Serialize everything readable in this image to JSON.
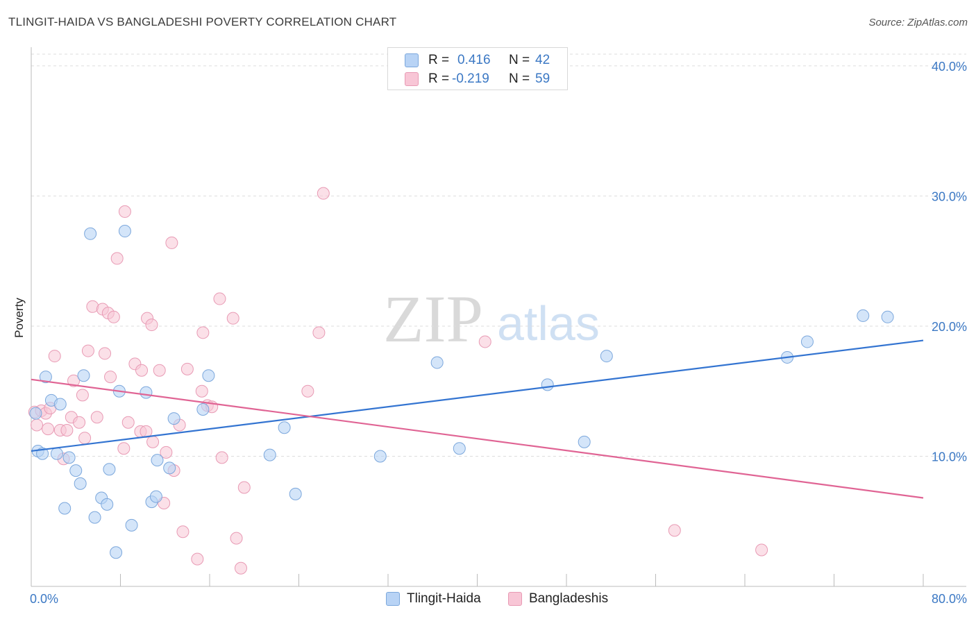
{
  "title": "TLINGIT-HAIDA VS BANGLADESHI POVERTY CORRELATION CHART",
  "source": "Source: ZipAtlas.com",
  "watermark": {
    "zip": "ZIP",
    "atlas": "atlas"
  },
  "legend": {
    "rows": [
      {
        "r_label": "R =",
        "r_value": "0.416",
        "n_label": "N =",
        "n_value": "42"
      },
      {
        "r_label": "R =",
        "r_value": "-0.219",
        "n_label": "N =",
        "n_value": "59"
      }
    ]
  },
  "bottom_legend": [
    "Tlingit-Haida",
    "Bangladeshis"
  ],
  "colors": {
    "blue_fill": "#b8d3f5",
    "blue_stroke": "#7ba7dc",
    "blue_line": "#3374d1",
    "pink_fill": "#f8c6d6",
    "pink_stroke": "#e89ab4",
    "pink_line": "#e06494",
    "tick_text": "#3b78c4"
  },
  "chart_data": {
    "type": "scatter",
    "title": "TLINGIT-HAIDA VS BANGLADESHI POVERTY CORRELATION CHART",
    "xlabel": "",
    "ylabel": "Poverty",
    "xlim": [
      0,
      80
    ],
    "ylim": [
      0,
      40
    ],
    "x_tick_labels": [
      "0.0%",
      "80.0%"
    ],
    "y_ticks": [
      10,
      20,
      30,
      40
    ],
    "y_tick_labels": [
      "10.0%",
      "20.0%",
      "30.0%",
      "40.0%"
    ],
    "grid": true,
    "series": [
      {
        "name": "Tlingit-Haida",
        "r": 0.416,
        "n": 42,
        "trend": [
          [
            0,
            10.4
          ],
          [
            80,
            18.9
          ]
        ],
        "points": [
          [
            0.6,
            10.4
          ],
          [
            1.0,
            10.2
          ],
          [
            1.3,
            16.1
          ],
          [
            1.8,
            14.3
          ],
          [
            2.3,
            10.2
          ],
          [
            2.6,
            14.0
          ],
          [
            3.0,
            6.0
          ],
          [
            3.4,
            9.9
          ],
          [
            4.0,
            8.9
          ],
          [
            4.4,
            7.9
          ],
          [
            4.7,
            16.2
          ],
          [
            5.3,
            27.1
          ],
          [
            5.7,
            5.3
          ],
          [
            6.3,
            6.8
          ],
          [
            6.8,
            6.3
          ],
          [
            7.0,
            9.0
          ],
          [
            7.6,
            2.6
          ],
          [
            7.9,
            15.0
          ],
          [
            8.4,
            27.3
          ],
          [
            9.0,
            4.7
          ],
          [
            10.3,
            14.9
          ],
          [
            10.8,
            6.5
          ],
          [
            11.2,
            6.9
          ],
          [
            11.3,
            9.7
          ],
          [
            12.4,
            9.1
          ],
          [
            12.8,
            12.9
          ],
          [
            15.4,
            13.6
          ],
          [
            15.9,
            16.2
          ],
          [
            21.4,
            10.1
          ],
          [
            22.7,
            12.2
          ],
          [
            23.7,
            7.1
          ],
          [
            31.3,
            10.0
          ],
          [
            36.4,
            17.2
          ],
          [
            38.4,
            10.6
          ],
          [
            46.3,
            15.5
          ],
          [
            49.6,
            11.1
          ],
          [
            51.6,
            17.7
          ],
          [
            67.8,
            17.6
          ],
          [
            69.6,
            18.8
          ],
          [
            74.6,
            20.8
          ],
          [
            76.8,
            20.7
          ],
          [
            0.4,
            13.3
          ]
        ]
      },
      {
        "name": "Bangladeshis",
        "r": -0.219,
        "n": 59,
        "trend": [
          [
            0,
            15.9
          ],
          [
            80,
            6.8
          ]
        ],
        "points": [
          [
            0.3,
            13.4
          ],
          [
            0.5,
            12.4
          ],
          [
            0.9,
            13.5
          ],
          [
            1.3,
            13.3
          ],
          [
            1.5,
            12.1
          ],
          [
            1.7,
            13.7
          ],
          [
            2.1,
            17.7
          ],
          [
            2.6,
            12.0
          ],
          [
            2.9,
            9.8
          ],
          [
            3.2,
            12.0
          ],
          [
            3.6,
            13.0
          ],
          [
            3.8,
            15.8
          ],
          [
            4.3,
            12.6
          ],
          [
            4.6,
            14.7
          ],
          [
            4.8,
            11.4
          ],
          [
            5.1,
            18.1
          ],
          [
            5.5,
            21.5
          ],
          [
            5.9,
            13.0
          ],
          [
            6.4,
            21.3
          ],
          [
            6.6,
            17.9
          ],
          [
            6.9,
            21.0
          ],
          [
            7.1,
            16.1
          ],
          [
            7.4,
            20.7
          ],
          [
            7.7,
            25.2
          ],
          [
            8.3,
            10.6
          ],
          [
            8.4,
            28.8
          ],
          [
            8.7,
            12.6
          ],
          [
            9.3,
            17.1
          ],
          [
            9.8,
            11.9
          ],
          [
            9.9,
            16.6
          ],
          [
            10.3,
            11.9
          ],
          [
            10.4,
            20.6
          ],
          [
            10.8,
            20.1
          ],
          [
            10.9,
            11.1
          ],
          [
            11.5,
            16.6
          ],
          [
            11.9,
            6.4
          ],
          [
            12.1,
            10.3
          ],
          [
            12.6,
            26.4
          ],
          [
            12.8,
            8.9
          ],
          [
            13.3,
            12.4
          ],
          [
            13.6,
            4.2
          ],
          [
            14.0,
            16.7
          ],
          [
            14.9,
            2.1
          ],
          [
            15.3,
            15.0
          ],
          [
            15.4,
            19.5
          ],
          [
            15.8,
            13.9
          ],
          [
            16.2,
            13.8
          ],
          [
            16.9,
            22.1
          ],
          [
            17.1,
            9.9
          ],
          [
            18.1,
            20.6
          ],
          [
            18.4,
            3.7
          ],
          [
            18.8,
            1.4
          ],
          [
            19.1,
            7.6
          ],
          [
            24.8,
            15.0
          ],
          [
            25.8,
            19.5
          ],
          [
            26.2,
            30.2
          ],
          [
            40.7,
            18.8
          ],
          [
            57.7,
            4.3
          ],
          [
            65.5,
            2.8
          ]
        ]
      }
    ]
  }
}
